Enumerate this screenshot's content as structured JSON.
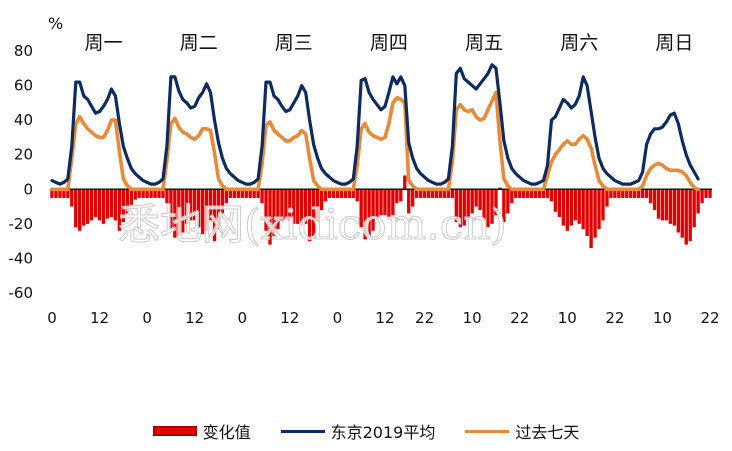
{
  "chart_data": {
    "type": "bar+line",
    "unit_label": "%",
    "ylim": [
      -60,
      80
    ],
    "yticks": [
      -60,
      -40,
      -20,
      0,
      20,
      40,
      60,
      80
    ],
    "xticks": [
      {
        "hour": 0,
        "label": "0"
      },
      {
        "hour": 12,
        "label": "12"
      },
      {
        "hour": 24,
        "label": "0"
      },
      {
        "hour": 36,
        "label": "12"
      },
      {
        "hour": 48,
        "label": "0"
      },
      {
        "hour": 60,
        "label": "12"
      },
      {
        "hour": 72,
        "label": "0"
      },
      {
        "hour": 84,
        "label": "12"
      },
      {
        "hour": 94,
        "label": "22"
      },
      {
        "hour": 106,
        "label": "10"
      },
      {
        "hour": 118,
        "label": "22"
      },
      {
        "hour": 130,
        "label": "10"
      },
      {
        "hour": 142,
        "label": "22"
      },
      {
        "hour": 154,
        "label": "10"
      },
      {
        "hour": 166,
        "label": "22"
      }
    ],
    "days": [
      {
        "label": "周一",
        "hour": 13
      },
      {
        "label": "周二",
        "hour": 37
      },
      {
        "label": "周三",
        "hour": 61
      },
      {
        "label": "周四",
        "hour": 85
      },
      {
        "label": "周五",
        "hour": 109
      },
      {
        "label": "周六",
        "hour": 133
      },
      {
        "label": "周日",
        "hour": 157
      }
    ],
    "watermark": "悉地网(xidicom.cn)",
    "series": [
      {
        "name": "变化值",
        "kind": "bar",
        "color": "#e00000",
        "values": [
          -5,
          -5,
          -5,
          -5,
          -5,
          -10,
          -22,
          -24,
          -21,
          -20,
          -18,
          -16,
          -18,
          -20,
          -17,
          -16,
          -18,
          -24,
          -19,
          -14,
          -9,
          -6,
          -5,
          -5,
          -5,
          -5,
          -5,
          -5,
          -5,
          -8,
          -23,
          -28,
          -27,
          -25,
          -20,
          -18,
          -18,
          -22,
          -26,
          -24,
          -18,
          -30,
          -23,
          -14,
          -8,
          -5,
          -5,
          -5,
          -5,
          -5,
          -5,
          -5,
          -5,
          -8,
          -24,
          -32,
          -27,
          -23,
          -18,
          -17,
          -18,
          -20,
          -20,
          -21,
          -20,
          -30,
          -27,
          -19,
          -12,
          -7,
          -5,
          -5,
          -5,
          -5,
          -5,
          -5,
          -5,
          -7,
          -22,
          -29,
          -27,
          -24,
          -17,
          -15,
          -15,
          -16,
          -15,
          -8,
          -7,
          8,
          -14,
          -10,
          -5,
          -5,
          -5,
          -5,
          -5,
          -5,
          -5,
          -5,
          -5,
          -5,
          -19,
          -22,
          -21,
          -17,
          -14,
          -10,
          -12,
          -18,
          -22,
          -20,
          -15,
          1,
          -19,
          -14,
          -8,
          -5,
          -5,
          -5,
          -5,
          -5,
          -5,
          -5,
          -5,
          -5,
          -7,
          -13,
          -16,
          -21,
          -24,
          -21,
          -18,
          -20,
          -23,
          -27,
          -34,
          -28,
          -23,
          -18,
          -10,
          -5,
          -5,
          -5,
          -5,
          -5,
          -5,
          -5,
          -5,
          -5,
          -5,
          -8,
          -12,
          -17,
          -18,
          -18,
          -20,
          -21,
          -25,
          -28,
          -32,
          -30,
          -22,
          -14,
          -8,
          -5,
          -5
        ]
      },
      {
        "name": "东京2019平均",
        "kind": "line",
        "color": "#0d2b5e",
        "values": [
          5,
          4,
          3,
          4,
          6,
          25,
          62,
          62,
          54,
          52,
          48,
          44,
          45,
          48,
          52,
          58,
          54,
          38,
          25,
          18,
          12,
          9,
          7,
          5,
          4,
          3,
          3,
          4,
          6,
          25,
          65,
          65,
          57,
          52,
          50,
          47,
          48,
          53,
          56,
          61,
          56,
          40,
          27,
          18,
          12,
          9,
          7,
          5,
          4,
          3,
          3,
          4,
          6,
          25,
          62,
          62,
          54,
          52,
          48,
          45,
          46,
          50,
          54,
          60,
          56,
          40,
          26,
          18,
          12,
          9,
          7,
          5,
          4,
          3,
          3,
          4,
          6,
          25,
          63,
          64,
          56,
          52,
          49,
          46,
          48,
          56,
          65,
          61,
          65,
          60,
          27,
          18,
          12,
          9,
          7,
          5,
          4,
          3,
          3,
          4,
          6,
          25,
          67,
          70,
          64,
          62,
          60,
          58,
          61,
          64,
          67,
          72,
          70,
          50,
          28,
          18,
          12,
          9,
          7,
          5,
          4,
          3,
          3,
          4,
          5,
          14,
          40,
          42,
          47,
          52,
          50,
          47,
          49,
          54,
          65,
          60,
          45,
          30,
          18,
          12,
          9,
          7,
          5,
          4,
          3,
          3,
          3,
          4,
          5,
          10,
          26,
          32,
          35,
          35,
          36,
          39,
          43,
          44,
          38,
          28,
          20,
          14,
          10,
          6
        ]
      },
      {
        "name": "过去七天",
        "kind": "line",
        "color": "#e98a3a",
        "values": [
          0,
          0,
          0,
          0,
          0,
          18,
          38,
          42,
          38,
          35,
          33,
          31,
          30,
          30,
          34,
          40,
          40,
          22,
          6,
          2,
          0,
          0,
          0,
          0,
          0,
          0,
          0,
          0,
          0,
          17,
          38,
          41,
          36,
          33,
          32,
          30,
          29,
          31,
          35,
          35,
          34,
          21,
          6,
          2,
          0,
          0,
          0,
          0,
          0,
          0,
          0,
          0,
          0,
          15,
          37,
          39,
          34,
          32,
          30,
          28,
          28,
          30,
          31,
          34,
          32,
          18,
          5,
          2,
          0,
          0,
          0,
          0,
          0,
          0,
          0,
          0,
          0,
          14,
          35,
          38,
          33,
          31,
          30,
          29,
          30,
          38,
          50,
          53,
          52,
          50,
          5,
          2,
          0,
          0,
          0,
          0,
          0,
          0,
          0,
          0,
          0,
          16,
          46,
          49,
          46,
          45,
          46,
          42,
          40,
          41,
          46,
          51,
          56,
          28,
          6,
          2,
          0,
          0,
          0,
          0,
          0,
          0,
          0,
          0,
          0,
          8,
          16,
          20,
          23,
          26,
          28,
          26,
          26,
          29,
          31,
          29,
          24,
          14,
          5,
          2,
          0,
          0,
          0,
          0,
          0,
          0,
          0,
          0,
          0,
          2,
          8,
          12,
          14,
          15,
          14,
          12,
          11,
          11,
          11,
          10,
          8,
          4,
          1,
          0
        ]
      }
    ]
  }
}
